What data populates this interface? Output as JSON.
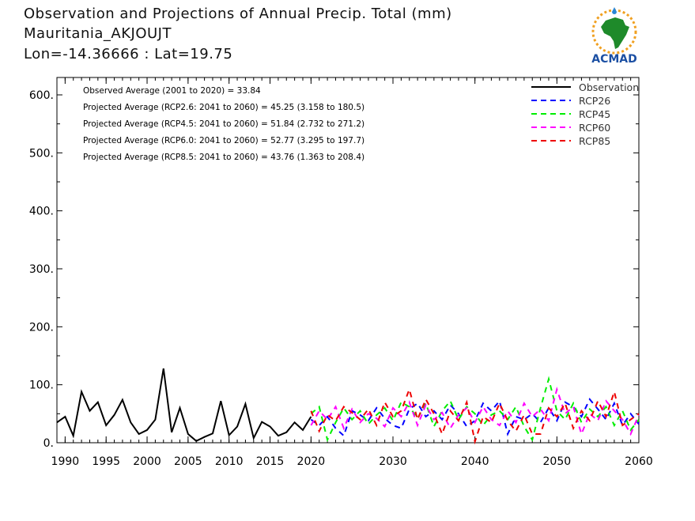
{
  "header": {
    "title": "Observation and Projections of Annual Precip. Total (mm)",
    "station": "Mauritania_AKJOUJT",
    "coords": "Lon=-14.36666 : Lat=19.75"
  },
  "logo": {
    "text": "ACMAD",
    "icon": "acmad-africa-logo-icon"
  },
  "colors": {
    "observation": "#000000",
    "rcp26": "#0000ff",
    "rcp45": "#00ee00",
    "rcp60": "#ff00ff",
    "rcp85": "#ee0000"
  },
  "chart_data": {
    "type": "line",
    "xlim": [
      1989,
      2060
    ],
    "ylim": [
      0,
      630
    ],
    "x_ticks": [
      "1990",
      "1995",
      "2000",
      "2005",
      "2010",
      "2015",
      "2020",
      "2030",
      "2040",
      "2050",
      "2060"
    ],
    "y_ticks": [
      "0.",
      "100.",
      "200.",
      "300.",
      "400.",
      "500.",
      "600."
    ],
    "grid": false,
    "legend_position": "top-right",
    "annotations": [
      "Observed Average (2001 to 2020) = 33.84",
      "Projected Average (RCP2.6: 2041 to 2060) = 45.25 (3.158 to 180.5)",
      "Projected Average (RCP4.5: 2041 to 2060) = 51.84 (2.732 to 271.2)",
      "Projected Average (RCP6.0: 2041 to 2060) = 52.77 (3.295 to 197.7)",
      "Projected Average (RCP8.5: 2041 to 2060) = 43.76 (1.363 to 208.4)"
    ],
    "series": [
      {
        "name": "Observation",
        "style": "solid",
        "color": "#000000",
        "x": [
          1989,
          1990,
          1991,
          1992,
          1993,
          1994,
          1995,
          1996,
          1997,
          1998,
          1999,
          2000,
          2001,
          2002,
          2003,
          2004,
          2005,
          2006,
          2007,
          2008,
          2009,
          2010,
          2011,
          2012,
          2013,
          2014,
          2015,
          2016,
          2017,
          2018,
          2019,
          2020
        ],
        "y": [
          35,
          45,
          12,
          88,
          55,
          70,
          30,
          48,
          74,
          35,
          15,
          22,
          40,
          128,
          18,
          60,
          15,
          3,
          10,
          16,
          72,
          13,
          28,
          67,
          8,
          36,
          28,
          12,
          18,
          35,
          22,
          45
        ]
      },
      {
        "name": "RCP26",
        "style": "dashed",
        "color": "#0000ff",
        "x": [
          2020,
          2021,
          2022,
          2023,
          2024,
          2025,
          2026,
          2027,
          2028,
          2029,
          2030,
          2031,
          2032,
          2033,
          2034,
          2035,
          2036,
          2037,
          2038,
          2039,
          2040,
          2041,
          2042,
          2043,
          2044,
          2045,
          2046,
          2047,
          2048,
          2049,
          2050,
          2051,
          2052,
          2053,
          2054,
          2055,
          2056,
          2057,
          2058,
          2059,
          2060
        ],
        "y": [
          40,
          30,
          45,
          25,
          12,
          55,
          48,
          38,
          60,
          42,
          30,
          25,
          58,
          68,
          45,
          55,
          40,
          65,
          50,
          28,
          38,
          68,
          55,
          72,
          15,
          45,
          40,
          50,
          35,
          60,
          38,
          70,
          62,
          45,
          75,
          58,
          40,
          68,
          30,
          50,
          32
        ]
      },
      {
        "name": "RCP45",
        "style": "dashed",
        "color": "#00ee00",
        "x": [
          2020,
          2021,
          2022,
          2023,
          2024,
          2025,
          2026,
          2027,
          2028,
          2029,
          2030,
          2031,
          2032,
          2033,
          2034,
          2035,
          2036,
          2037,
          2038,
          2039,
          2040,
          2041,
          2042,
          2043,
          2044,
          2045,
          2046,
          2047,
          2048,
          2049,
          2050,
          2051,
          2052,
          2053,
          2054,
          2055,
          2056,
          2057,
          2058,
          2059,
          2060
        ],
        "y": [
          50,
          62,
          5,
          35,
          60,
          40,
          55,
          32,
          48,
          60,
          38,
          70,
          62,
          42,
          68,
          28,
          55,
          72,
          40,
          62,
          50,
          30,
          48,
          55,
          40,
          62,
          28,
          5,
          60,
          110,
          55,
          40,
          68,
          35,
          58,
          45,
          62,
          30,
          55,
          22,
          40
        ]
      },
      {
        "name": "RCP60",
        "style": "dashed",
        "color": "#ff00ff",
        "x": [
          2020,
          2021,
          2022,
          2023,
          2024,
          2025,
          2026,
          2027,
          2028,
          2029,
          2030,
          2031,
          2032,
          2033,
          2034,
          2035,
          2036,
          2037,
          2038,
          2039,
          2040,
          2041,
          2042,
          2043,
          2044,
          2045,
          2046,
          2047,
          2048,
          2049,
          2050,
          2051,
          2052,
          2053,
          2054,
          2055,
          2056,
          2057,
          2058,
          2059,
          2060
        ],
        "y": [
          30,
          55,
          40,
          62,
          25,
          58,
          35,
          50,
          42,
          28,
          60,
          45,
          70,
          30,
          65,
          40,
          52,
          25,
          48,
          60,
          35,
          62,
          40,
          30,
          55,
          35,
          68,
          45,
          58,
          38,
          92,
          50,
          62,
          15,
          50,
          38,
          72,
          55,
          40,
          15,
          48
        ]
      },
      {
        "name": "RCP85",
        "style": "dashed",
        "color": "#ee0000",
        "x": [
          2020,
          2021,
          2022,
          2023,
          2024,
          2025,
          2026,
          2027,
          2028,
          2029,
          2030,
          2031,
          2032,
          2033,
          2034,
          2035,
          2036,
          2037,
          2038,
          2039,
          2040,
          2041,
          2042,
          2043,
          2044,
          2045,
          2046,
          2047,
          2048,
          2049,
          2050,
          2051,
          2052,
          2053,
          2054,
          2055,
          2056,
          2057,
          2058,
          2059,
          2060
        ],
        "y": [
          55,
          20,
          48,
          38,
          62,
          52,
          40,
          58,
          30,
          70,
          45,
          55,
          92,
          40,
          75,
          50,
          15,
          55,
          38,
          70,
          2,
          45,
          35,
          68,
          38,
          20,
          48,
          15,
          15,
          60,
          45,
          68,
          25,
          55,
          38,
          72,
          45,
          88,
          30,
          40,
          50
        ]
      }
    ]
  }
}
